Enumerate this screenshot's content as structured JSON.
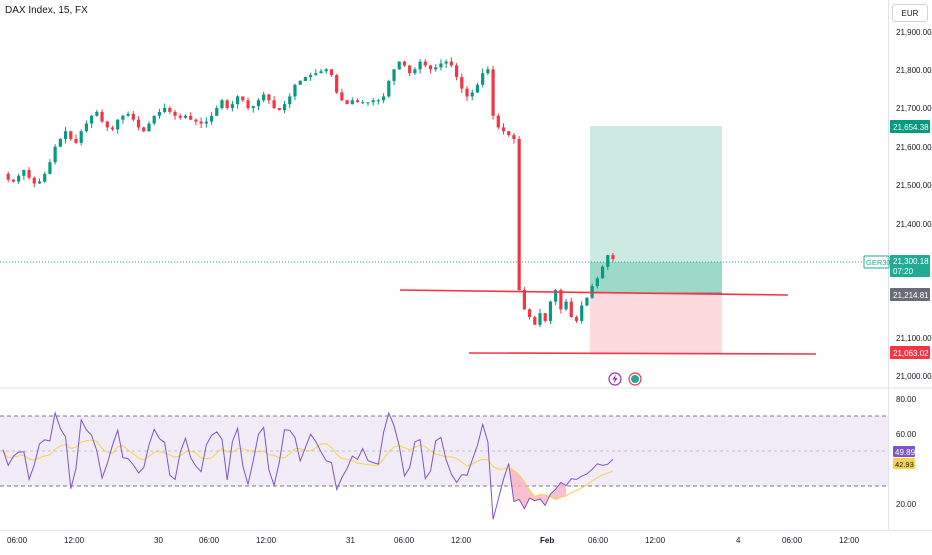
{
  "header": {
    "symbol_title": "DAX Index, 15, FX",
    "currency": "EUR"
  },
  "price_axis": {
    "ticks": [
      "21,900.00",
      "21,800.00",
      "21,700.00",
      "21,600.00",
      "21,500.00",
      "21,400.00",
      "21,100.00",
      "21,000.00"
    ]
  },
  "badges": {
    "take_profit": "21,654.38",
    "symbol_tag": "GER30",
    "last_price": "21,300.18",
    "countdown": "07:20",
    "entry": "21,214.81",
    "stop_loss": "21,063.02",
    "rsi_value": "49.89",
    "rsi_ma_value": "42.93"
  },
  "rsi_axis": {
    "ticks": [
      "80.00",
      "60.00",
      "20.00"
    ]
  },
  "time_axis": {
    "ticks": [
      "06:00",
      "12:00",
      "30",
      "06:00",
      "12:00",
      "31",
      "06:00",
      "12:00",
      "Feb",
      "06:00",
      "12:00",
      "4",
      "06:00",
      "12:00"
    ]
  },
  "colors": {
    "up_candle": "#089981",
    "down_candle": "#f23645",
    "profit_zone": "#b2dfd3",
    "loss_zone": "#fbd4d7",
    "trend_line": "#f23645",
    "rsi_line": "#7e57c2",
    "rsi_ma_line": "#f7d34d",
    "rsi_band": "#ede7f6",
    "last_price_line": "#22ab94"
  },
  "chart_data": {
    "type": "candlestick",
    "symbol": "DAX Index",
    "interval": "15",
    "source": "FX",
    "ylim": [
      21000,
      21930
    ],
    "price_path": [
      21530,
      21515,
      21510,
      21525,
      21540,
      21520,
      21505,
      21510,
      21530,
      21560,
      21600,
      21620,
      21640,
      21620,
      21610,
      21640,
      21660,
      21680,
      21690,
      21665,
      21650,
      21645,
      21670,
      21680,
      21685,
      21670,
      21650,
      21640,
      21660,
      21680,
      21690,
      21700,
      21690,
      21680,
      21675,
      21680,
      21670,
      21665,
      21660,
      21665,
      21680,
      21700,
      21720,
      21700,
      21710,
      21730,
      21720,
      21700,
      21705,
      21720,
      21735,
      21720,
      21700,
      21695,
      21710,
      21730,
      21760,
      21770,
      21780,
      21785,
      21790,
      21795,
      21800,
      21785,
      21740,
      21720,
      21710,
      21720,
      21715,
      21715,
      21715,
      21720,
      21720,
      21730,
      21770,
      21800,
      21820,
      21810,
      21790,
      21800,
      21820,
      21810,
      21800,
      21805,
      21815,
      21820,
      21810,
      21780,
      21750,
      21730,
      21740,
      21760,
      21790,
      21800,
      21680,
      21650,
      21640,
      21630,
      21620,
      21230,
      21180,
      21160,
      21140,
      21170,
      21150,
      21200,
      21230,
      21180,
      21200,
      21160,
      21150,
      21190,
      21210,
      21240,
      21260,
      21290,
      21320,
      21310
    ],
    "trade_position": {
      "take_profit": 21654.38,
      "entry": 21214.81,
      "stop_loss": 21063.02,
      "last_price": 21300.18
    },
    "rsi": {
      "upper_band": 70,
      "lower_band": 30,
      "middle": 50,
      "ticks": [
        80,
        60,
        20
      ],
      "last_value": 49.89,
      "ma_last_value": 42.93,
      "ylim": [
        10,
        90
      ]
    }
  }
}
